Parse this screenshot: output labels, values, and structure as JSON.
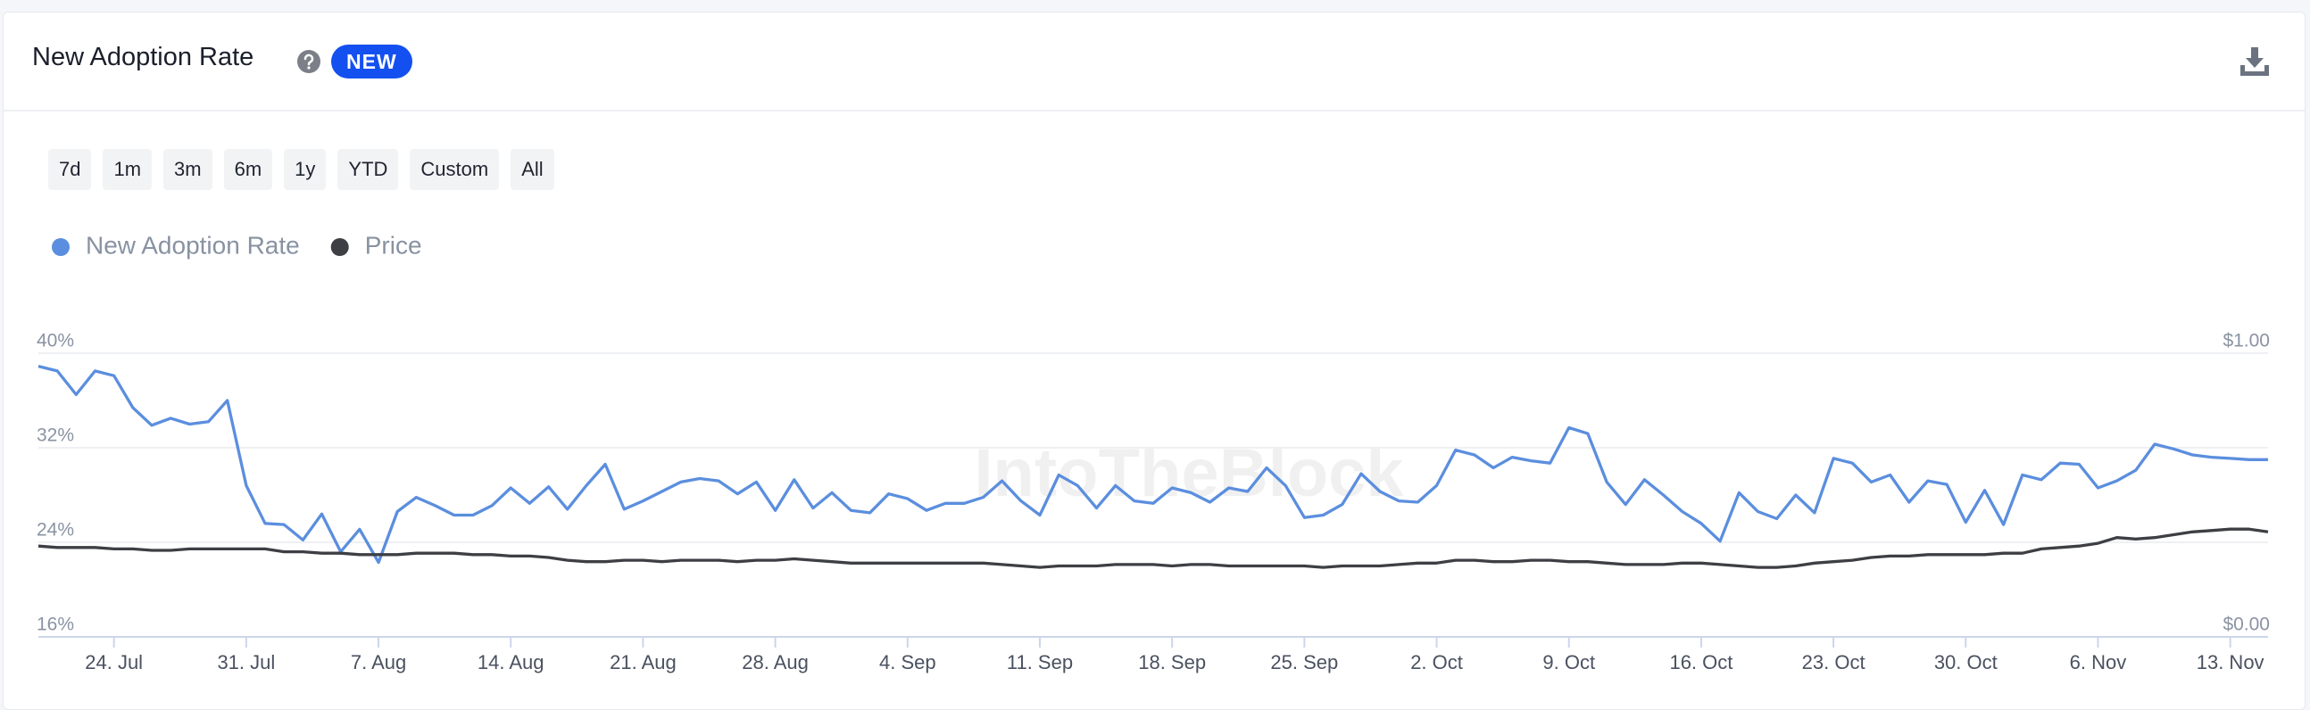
{
  "header": {
    "title": "New Adoption Rate",
    "badge": "NEW"
  },
  "range_buttons": [
    "7d",
    "1m",
    "3m",
    "6m",
    "1y",
    "YTD",
    "Custom",
    "All"
  ],
  "chart_data": {
    "type": "line",
    "watermark": "IntoTheBlock",
    "categories": [
      null,
      null,
      null,
      null,
      "24. Jul",
      null,
      null,
      null,
      null,
      null,
      null,
      "31. Jul",
      null,
      null,
      null,
      null,
      null,
      null,
      "7. Aug",
      null,
      null,
      null,
      null,
      null,
      null,
      "14. Aug",
      null,
      null,
      null,
      null,
      null,
      null,
      "21. Aug",
      null,
      null,
      null,
      null,
      null,
      null,
      "28. Aug",
      null,
      null,
      null,
      null,
      null,
      null,
      "4. Sep",
      null,
      null,
      null,
      null,
      null,
      null,
      "11. Sep",
      null,
      null,
      null,
      null,
      null,
      null,
      "18. Sep",
      null,
      null,
      null,
      null,
      null,
      null,
      "25. Sep",
      null,
      null,
      null,
      null,
      null,
      null,
      "2. Oct",
      null,
      null,
      null,
      null,
      null,
      null,
      "9. Oct",
      null,
      null,
      null,
      null,
      null,
      null,
      "16. Oct",
      null,
      null,
      null,
      null,
      null,
      null,
      "23. Oct",
      null,
      null,
      null,
      null,
      null,
      null,
      "30. Oct",
      null,
      null,
      null,
      null,
      null,
      null,
      "6. Nov",
      null,
      null,
      null,
      null,
      null,
      null,
      "13. Nov",
      null,
      null
    ],
    "series": [
      {
        "name": "New Adoption Rate",
        "color": "#5b8ede",
        "axis": "y",
        "values": [
          38.9,
          38.5,
          36.5,
          38.5,
          38.1,
          35.4,
          33.9,
          34.5,
          34.0,
          34.2,
          36.0,
          28.8,
          25.6,
          25.5,
          24.2,
          26.4,
          23.2,
          25.1,
          22.3,
          26.6,
          27.8,
          27.1,
          26.3,
          26.3,
          27.1,
          28.6,
          27.3,
          28.7,
          26.8,
          28.8,
          30.6,
          26.8,
          27.5,
          28.3,
          29.1,
          29.4,
          29.2,
          28.1,
          29.1,
          26.7,
          29.3,
          26.9,
          28.2,
          26.7,
          26.5,
          28.1,
          27.7,
          26.7,
          27.3,
          27.3,
          27.8,
          29.2,
          27.5,
          26.3,
          29.7,
          28.8,
          26.9,
          28.8,
          27.5,
          27.3,
          28.6,
          28.2,
          27.4,
          28.6,
          28.3,
          30.3,
          28.8,
          26.1,
          26.3,
          27.2,
          29.8,
          28.3,
          27.5,
          27.4,
          28.8,
          31.8,
          31.4,
          30.3,
          31.2,
          30.9,
          30.7,
          33.7,
          33.2,
          29.1,
          27.2,
          29.3,
          28.0,
          26.6,
          25.6,
          24.1,
          28.2,
          26.6,
          26.0,
          28.0,
          26.5,
          31.1,
          30.7,
          29.1,
          29.7,
          27.4,
          29.2,
          28.9,
          25.7,
          28.4,
          25.5,
          29.7,
          29.3,
          30.7,
          30.6,
          28.6,
          29.2,
          30.1,
          32.3,
          31.9,
          31.4,
          31.2,
          31.1,
          31.0,
          31.0
        ]
      },
      {
        "name": "Price",
        "color": "#3d3f44",
        "axis": "y2",
        "values": [
          0.32,
          0.315,
          0.315,
          0.315,
          0.31,
          0.31,
          0.305,
          0.305,
          0.31,
          0.31,
          0.31,
          0.31,
          0.31,
          0.3,
          0.3,
          0.295,
          0.295,
          0.29,
          0.29,
          0.29,
          0.295,
          0.295,
          0.295,
          0.29,
          0.29,
          0.285,
          0.285,
          0.28,
          0.27,
          0.265,
          0.265,
          0.27,
          0.27,
          0.265,
          0.27,
          0.27,
          0.27,
          0.265,
          0.27,
          0.27,
          0.275,
          0.27,
          0.265,
          0.26,
          0.26,
          0.26,
          0.26,
          0.26,
          0.26,
          0.26,
          0.26,
          0.255,
          0.25,
          0.245,
          0.25,
          0.25,
          0.25,
          0.255,
          0.255,
          0.255,
          0.25,
          0.255,
          0.255,
          0.25,
          0.25,
          0.25,
          0.25,
          0.25,
          0.245,
          0.25,
          0.25,
          0.25,
          0.255,
          0.26,
          0.26,
          0.27,
          0.27,
          0.265,
          0.265,
          0.27,
          0.27,
          0.265,
          0.265,
          0.26,
          0.255,
          0.255,
          0.255,
          0.26,
          0.26,
          0.255,
          0.25,
          0.245,
          0.245,
          0.25,
          0.26,
          0.265,
          0.27,
          0.28,
          0.285,
          0.285,
          0.29,
          0.29,
          0.29,
          0.29,
          0.295,
          0.295,
          0.31,
          0.315,
          0.32,
          0.33,
          0.35,
          0.345,
          0.35,
          0.36,
          0.37,
          0.375,
          0.38,
          0.38,
          0.37
        ]
      }
    ],
    "ylim": [
      16,
      40
    ],
    "yticks": [
      {
        "value": 16,
        "label": "16%"
      },
      {
        "value": 24,
        "label": "24%"
      },
      {
        "value": 32,
        "label": "32%"
      },
      {
        "value": 40,
        "label": "40%"
      }
    ],
    "y2lim": [
      0,
      1
    ],
    "y2ticks": [
      {
        "value": 0,
        "label": "$0.00"
      },
      {
        "value": 1,
        "label": "$1.00"
      }
    ],
    "grid": true
  }
}
